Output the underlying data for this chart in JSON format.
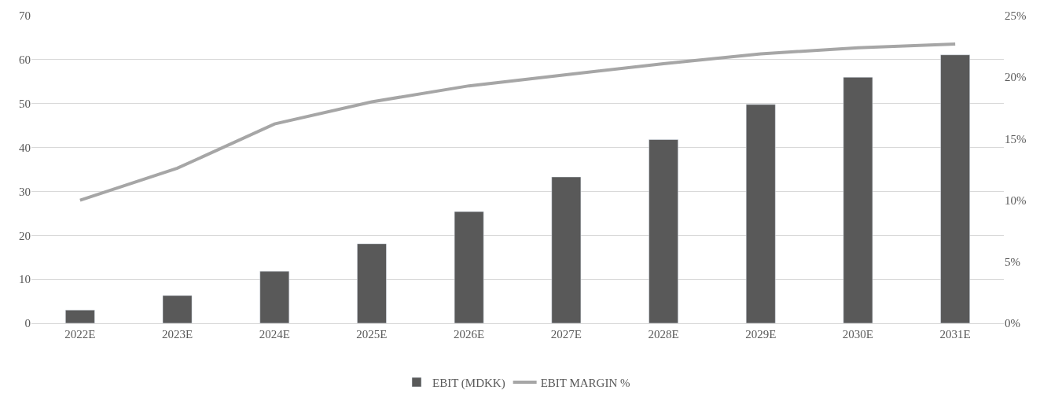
{
  "chart_data": {
    "type": "bar",
    "categories": [
      "2022E",
      "2023E",
      "2024E",
      "2025E",
      "2026E",
      "2027E",
      "2028E",
      "2029E",
      "2030E",
      "2031E"
    ],
    "series": [
      {
        "name": "EBIT (MDKK)",
        "color": "#595959",
        "values": [
          3.0,
          6.3,
          11.8,
          18.1,
          25.4,
          33.3,
          41.8,
          49.8,
          56.0,
          61.1
        ]
      },
      {
        "name": "EBIT MARGIN %",
        "type": "line",
        "axis": "y2",
        "color": "#a6a6a6",
        "values": [
          10.0,
          12.6,
          16.2,
          18.0,
          19.3,
          20.2,
          21.1,
          21.9,
          22.4,
          22.7
        ]
      }
    ],
    "ylim": [
      0,
      70
    ],
    "yticks": [
      0,
      10,
      20,
      30,
      40,
      50,
      60,
      70
    ],
    "y2lim": [
      0,
      25
    ],
    "y2ticks": [
      {
        "value": 0,
        "label": "0%"
      },
      {
        "value": 5,
        "label": "5%"
      },
      {
        "value": 10,
        "label": "10%"
      },
      {
        "value": 15,
        "label": "15%"
      },
      {
        "value": 20,
        "label": "20%"
      },
      {
        "value": 25,
        "label": "25%"
      }
    ],
    "grid": "y",
    "legend": "bottom",
    "marker": "none",
    "line_style": "solid"
  }
}
